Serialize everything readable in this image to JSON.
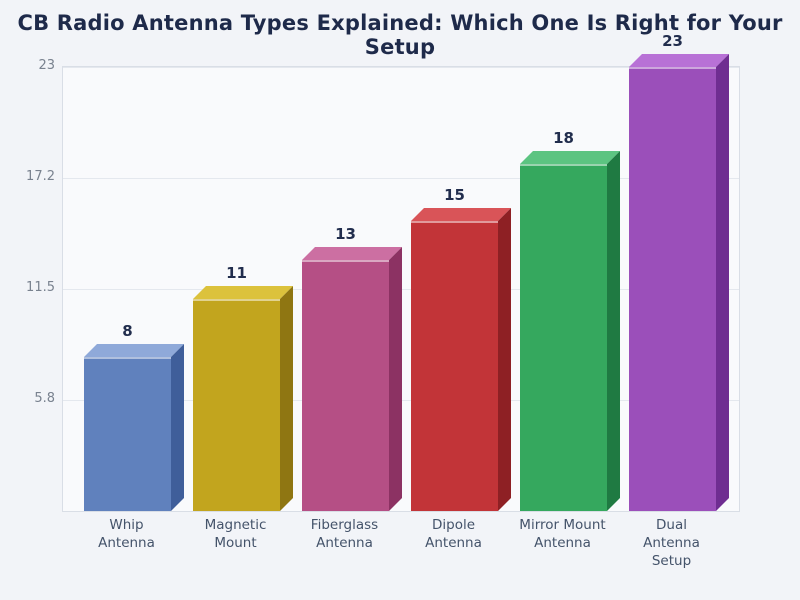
{
  "page": {
    "background": "#f2f4f8",
    "plot_background": "#f9fafc",
    "plot_border_color": "#d9dee6",
    "gridline_color": "#e4e8ee",
    "title_color": "#1e2a4a",
    "value_label_color": "#212d4d",
    "x_label_color": "#44536a",
    "y_tick_color": "#79828f"
  },
  "chart_data": {
    "type": "bar",
    "title": "CB Radio Antenna Types Explained: Which One Is Right for Your Setup",
    "categories": [
      "Whip Antenna",
      "Magnetic Mount",
      "Fiberglass Antenna",
      "Dipole Antenna",
      "Mirror Mount Antenna",
      "Dual Antenna Setup"
    ],
    "category_lines": [
      [
        "Whip Antenna"
      ],
      [
        "Magnetic",
        "Mount"
      ],
      [
        "Fiberglass",
        "Antenna"
      ],
      [
        "Dipole",
        "Antenna"
      ],
      [
        "Mirror Mount",
        "Antenna"
      ],
      [
        "Dual Antenna",
        "Setup"
      ]
    ],
    "values": [
      8,
      11,
      13,
      15,
      18,
      23
    ],
    "value_labels": [
      "8",
      "11",
      "13",
      "15",
      "18",
      "23"
    ],
    "xlabel": "",
    "ylabel": "",
    "ylim": [
      0,
      23
    ],
    "yticks": [
      {
        "label": "5.8",
        "value": 5.75
      },
      {
        "label": "11.5",
        "value": 11.5
      },
      {
        "label": "17.2",
        "value": 17.25
      },
      {
        "label": "23",
        "value": 23
      }
    ],
    "grid": true,
    "legend": false,
    "bar_style": "3d",
    "bar_colors": [
      {
        "front": "#6081bd",
        "top": "#8fa9d9",
        "side": "#3f5e9a"
      },
      {
        "front": "#c2a51e",
        "top": "#dcc23c",
        "side": "#8f7612"
      },
      {
        "front": "#b54f85",
        "top": "#cc6fa2",
        "side": "#8c3263"
      },
      {
        "front": "#c23438",
        "top": "#d95458",
        "side": "#8e2024"
      },
      {
        "front": "#35a85e",
        "top": "#5cc481",
        "side": "#1f7a42"
      },
      {
        "front": "#9b4fba",
        "top": "#b871d6",
        "side": "#6f2d91"
      }
    ]
  }
}
